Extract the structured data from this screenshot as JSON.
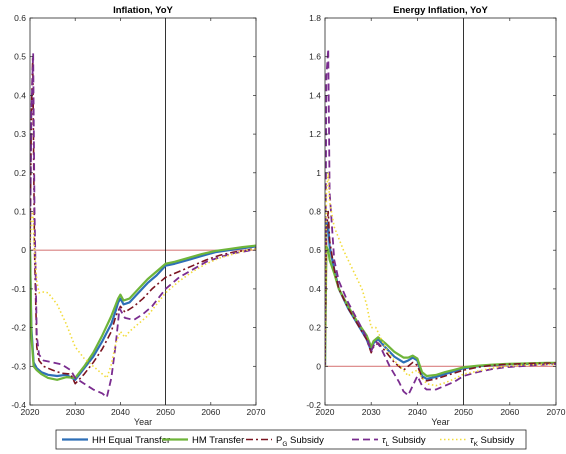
{
  "colors": {
    "hh_equal": "#2e6fb7",
    "hm": "#6fb53a",
    "pg": "#7b1420",
    "tl": "#7a2c8f",
    "tk": "#f2dc3c",
    "zero_line": "#d98080",
    "axis": "#262626"
  },
  "legend": {
    "placement": "bottom-outside",
    "entries": [
      {
        "text": "HH Equal Transfer",
        "sym": "",
        "sub": "",
        "suffix": "",
        "style": "solid",
        "color_key": "hh_equal"
      },
      {
        "text": "HM Transfer",
        "sym": "",
        "sub": "",
        "suffix": "",
        "style": "solid",
        "color_key": "hm"
      },
      {
        "text": "",
        "sym": "P",
        "sub": "G",
        "suffix": " Subsidy",
        "style": "dashdot",
        "color_key": "pg"
      },
      {
        "text": "",
        "sym": "τ",
        "sub": "L",
        "suffix": " Subsidy",
        "style": "dashed",
        "color_key": "tl"
      },
      {
        "text": "",
        "sym": "τ",
        "sub": "K",
        "suffix": " Subsidy",
        "style": "dotted",
        "color_key": "tk"
      }
    ]
  },
  "chart_data": [
    {
      "type": "line",
      "title": "Inflation, YoY",
      "xlabel": "Year",
      "ylabel": "",
      "xlim": [
        2020,
        2070
      ],
      "ylim": [
        -0.4,
        0.6
      ],
      "xticks": [
        2020,
        2030,
        2040,
        2050,
        2060,
        2070
      ],
      "yticks": [
        -0.4,
        -0.3,
        -0.2,
        -0.1,
        0,
        0.1,
        0.2,
        0.3,
        0.4,
        0.5,
        0.6
      ],
      "ytick_labels": [
        "-0.4",
        "-0.3",
        "-0.2",
        "-0.1",
        "0",
        "0.1",
        "0.2",
        "0.3",
        "0.4",
        "0.5",
        "0.6"
      ],
      "hline": 0,
      "vline": 2050,
      "grid": false,
      "series": [
        {
          "name": "HH Equal Transfer",
          "color_key": "hh_equal",
          "style": "solid",
          "x": [
            2020,
            2020.3,
            2020.8,
            2021.5,
            2022.5,
            2024,
            2026,
            2028,
            2030,
            2032,
            2034,
            2036,
            2038,
            2039,
            2039.5,
            2040,
            2040.7,
            2042,
            2044,
            2046,
            2048,
            2050,
            2052,
            2055,
            2058,
            2061,
            2064,
            2067,
            2070
          ],
          "y": [
            0.0,
            -0.2,
            -0.29,
            -0.305,
            -0.315,
            -0.322,
            -0.325,
            -0.322,
            -0.335,
            -0.305,
            -0.275,
            -0.235,
            -0.19,
            -0.155,
            -0.135,
            -0.125,
            -0.14,
            -0.135,
            -0.11,
            -0.085,
            -0.065,
            -0.04,
            -0.035,
            -0.025,
            -0.015,
            -0.005,
            0.0,
            0.005,
            0.01
          ]
        },
        {
          "name": "HM Transfer",
          "color_key": "hm",
          "style": "solid",
          "x": [
            2020,
            2020.3,
            2020.8,
            2021.5,
            2022.5,
            2024,
            2026,
            2028,
            2030,
            2032,
            2034,
            2036,
            2038,
            2039,
            2039.5,
            2040,
            2040.7,
            2042,
            2044,
            2046,
            2048,
            2050,
            2052,
            2055,
            2058,
            2061,
            2064,
            2067,
            2070
          ],
          "y": [
            0.0,
            -0.22,
            -0.3,
            -0.31,
            -0.32,
            -0.33,
            -0.335,
            -0.328,
            -0.33,
            -0.3,
            -0.265,
            -0.22,
            -0.17,
            -0.14,
            -0.125,
            -0.115,
            -0.13,
            -0.125,
            -0.1,
            -0.075,
            -0.055,
            -0.035,
            -0.03,
            -0.02,
            -0.01,
            -0.002,
            0.003,
            0.008,
            0.012
          ]
        },
        {
          "name": "P_G Subsidy",
          "color_key": "pg",
          "style": "dashdot",
          "x": [
            2020,
            2020.3,
            2020.6,
            2021,
            2021.5,
            2022,
            2023,
            2025,
            2027,
            2029,
            2030,
            2032,
            2034,
            2036,
            2038,
            2039,
            2040,
            2041,
            2043,
            2045,
            2047,
            2050,
            2053,
            2056,
            2059,
            2062,
            2065,
            2068,
            2070
          ],
          "y": [
            0.0,
            0.35,
            0.5,
            0.0,
            -0.25,
            -0.285,
            -0.3,
            -0.31,
            -0.318,
            -0.32,
            -0.345,
            -0.32,
            -0.29,
            -0.255,
            -0.21,
            -0.17,
            -0.145,
            -0.16,
            -0.145,
            -0.125,
            -0.1,
            -0.07,
            -0.055,
            -0.04,
            -0.025,
            -0.013,
            -0.005,
            0.0,
            0.005
          ]
        },
        {
          "name": "τ_L Subsidy",
          "color_key": "tl",
          "style": "dashed",
          "x": [
            2020,
            2020.3,
            2020.7,
            2021,
            2021.5,
            2022,
            2023,
            2025,
            2027,
            2029,
            2030,
            2032,
            2034,
            2036,
            2037,
            2038,
            2039,
            2039.8,
            2041,
            2043,
            2045,
            2047,
            2050,
            2053,
            2056,
            2059,
            2062,
            2065,
            2068,
            2070
          ],
          "y": [
            0.0,
            0.35,
            0.51,
            0.1,
            -0.22,
            -0.27,
            -0.285,
            -0.29,
            -0.295,
            -0.31,
            -0.33,
            -0.345,
            -0.36,
            -0.37,
            -0.38,
            -0.33,
            -0.24,
            -0.15,
            -0.175,
            -0.18,
            -0.165,
            -0.145,
            -0.1,
            -0.07,
            -0.05,
            -0.03,
            -0.018,
            -0.008,
            -0.002,
            0.003
          ]
        },
        {
          "name": "τ_K Subsidy",
          "color_key": "tk",
          "style": "dotted",
          "x": [
            2020,
            2020.3,
            2020.6,
            2021,
            2021.5,
            2022,
            2023,
            2024,
            2026,
            2028,
            2030,
            2032,
            2034,
            2036,
            2037,
            2038,
            2039,
            2040,
            2041,
            2042,
            2044,
            2046,
            2048,
            2050,
            2053,
            2056,
            2059,
            2062,
            2065,
            2068,
            2070
          ],
          "y": [
            0.0,
            0.08,
            0.1,
            0.0,
            -0.08,
            -0.11,
            -0.108,
            -0.11,
            -0.14,
            -0.19,
            -0.25,
            -0.28,
            -0.3,
            -0.32,
            -0.33,
            -0.295,
            -0.24,
            -0.21,
            -0.225,
            -0.21,
            -0.19,
            -0.17,
            -0.14,
            -0.11,
            -0.08,
            -0.055,
            -0.035,
            -0.02,
            -0.01,
            0.0,
            0.003
          ]
        }
      ]
    },
    {
      "type": "line",
      "title": "Energy Inflation, YoY",
      "xlabel": "Year",
      "ylabel": "",
      "xlim": [
        2020,
        2070
      ],
      "ylim": [
        -0.2,
        1.8
      ],
      "xticks": [
        2020,
        2030,
        2040,
        2050,
        2060,
        2070
      ],
      "yticks": [
        -0.2,
        0,
        0.2,
        0.4,
        0.6,
        0.8,
        1,
        1.2,
        1.4,
        1.6,
        1.8
      ],
      "ytick_labels": [
        "-0.2",
        "0",
        "0.2",
        "0.4",
        "0.6",
        "0.8",
        "1",
        "1.2",
        "1.4",
        "1.6",
        "1.8"
      ],
      "hline": 0,
      "vline": 2050,
      "grid": false,
      "series": [
        {
          "name": "HH Equal Transfer",
          "color_key": "hh_equal",
          "style": "solid",
          "x": [
            2020,
            2020.3,
            2020.7,
            2021,
            2022,
            2023,
            2025,
            2027,
            2029,
            2030,
            2030.5,
            2031.5,
            2033,
            2035,
            2037,
            2038,
            2039,
            2040,
            2041,
            2042,
            2044,
            2046,
            2048,
            2050,
            2053,
            2056,
            2059,
            2062,
            2065,
            2068,
            2070
          ],
          "y": [
            0.0,
            0.75,
            0.72,
            0.62,
            0.5,
            0.4,
            0.3,
            0.22,
            0.14,
            0.08,
            0.12,
            0.14,
            0.1,
            0.05,
            0.02,
            0.03,
            0.045,
            0.03,
            -0.05,
            -0.065,
            -0.055,
            -0.04,
            -0.025,
            -0.01,
            0.0,
            0.005,
            0.01,
            0.012,
            0.014,
            0.016,
            0.016
          ]
        },
        {
          "name": "HM Transfer",
          "color_key": "hm",
          "style": "solid",
          "x": [
            2020,
            2020.3,
            2020.7,
            2021,
            2022,
            2023,
            2025,
            2027,
            2029,
            2030,
            2030.5,
            2031.5,
            2033,
            2035,
            2037,
            2038,
            2039,
            2040,
            2041,
            2042,
            2044,
            2046,
            2048,
            2050,
            2053,
            2056,
            2059,
            2062,
            2065,
            2068,
            2070
          ],
          "y": [
            0.0,
            0.62,
            0.6,
            0.55,
            0.48,
            0.4,
            0.31,
            0.23,
            0.16,
            0.1,
            0.13,
            0.15,
            0.12,
            0.075,
            0.045,
            0.045,
            0.055,
            0.04,
            -0.03,
            -0.05,
            -0.045,
            -0.03,
            -0.018,
            -0.005,
            0.003,
            0.008,
            0.012,
            0.014,
            0.016,
            0.018,
            0.018
          ]
        },
        {
          "name": "P_G Subsidy",
          "color_key": "pg",
          "style": "dashdot",
          "x": [
            2020,
            2020.3,
            2020.7,
            2021,
            2022,
            2023,
            2025,
            2027,
            2029,
            2030,
            2030.5,
            2031.5,
            2033,
            2035,
            2037,
            2038,
            2039,
            2040,
            2041,
            2042,
            2044,
            2046,
            2048,
            2050,
            2053,
            2056,
            2059,
            2062,
            2065,
            2068,
            2070
          ],
          "y": [
            0.0,
            0.7,
            0.8,
            0.65,
            0.5,
            0.4,
            0.3,
            0.22,
            0.14,
            0.07,
            0.1,
            0.12,
            0.08,
            0.02,
            -0.02,
            0.0,
            0.02,
            0.005,
            -0.06,
            -0.075,
            -0.065,
            -0.05,
            -0.035,
            -0.02,
            -0.005,
            0.005,
            0.01,
            0.013,
            0.015,
            0.016,
            0.016
          ]
        },
        {
          "name": "τ_L Subsidy",
          "color_key": "tl",
          "style": "dashed",
          "x": [
            2020,
            2020.3,
            2020.7,
            2021,
            2022,
            2023,
            2025,
            2027,
            2029,
            2030,
            2031,
            2032,
            2034,
            2036,
            2037,
            2038,
            2039,
            2040,
            2041,
            2042,
            2044,
            2046,
            2048,
            2050,
            2053,
            2056,
            2059,
            2062,
            2065,
            2068,
            2070
          ],
          "y": [
            0.0,
            1.5,
            1.64,
            0.9,
            0.55,
            0.44,
            0.33,
            0.24,
            0.15,
            0.08,
            0.13,
            0.1,
            0.0,
            -0.08,
            -0.13,
            -0.15,
            -0.1,
            -0.05,
            -0.1,
            -0.12,
            -0.12,
            -0.1,
            -0.08,
            -0.05,
            -0.03,
            -0.015,
            -0.005,
            0.0,
            0.005,
            0.01,
            0.012
          ]
        },
        {
          "name": "τ_K Subsidy",
          "color_key": "tk",
          "style": "dotted",
          "x": [
            2020,
            2020.3,
            2020.7,
            2021,
            2022,
            2024,
            2026,
            2028,
            2029,
            2030,
            2031,
            2032,
            2033,
            2035,
            2037,
            2038,
            2039,
            2040,
            2041,
            2042,
            2044,
            2046,
            2048,
            2050,
            2053,
            2056,
            2059,
            2062,
            2065,
            2068,
            2070
          ],
          "y": [
            0.0,
            0.9,
            1.0,
            0.85,
            0.72,
            0.6,
            0.5,
            0.4,
            0.32,
            0.2,
            0.2,
            0.15,
            0.1,
            0.03,
            -0.02,
            -0.05,
            -0.03,
            -0.02,
            -0.06,
            -0.09,
            -0.1,
            -0.085,
            -0.065,
            -0.04,
            -0.025,
            -0.01,
            0.0,
            0.005,
            0.008,
            0.01,
            0.01
          ]
        }
      ]
    }
  ]
}
